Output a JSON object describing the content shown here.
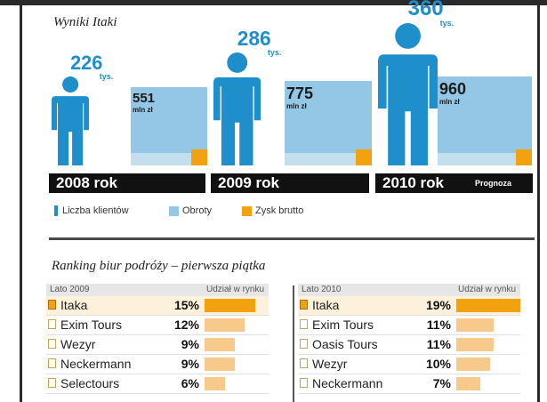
{
  "title": "Wyniki Itaki",
  "chart_data": {
    "type": "bar",
    "title": "Wyniki Itaki",
    "categories": [
      "2008 rok",
      "2009 rok",
      "2010 rok"
    ],
    "forecast_label": "Prognoza",
    "series": [
      {
        "name": "Liczba klientów",
        "values": [
          226,
          286,
          360
        ],
        "unit": "tys.",
        "color": "#1f8fcc"
      },
      {
        "name": "Obroty",
        "values": [
          551,
          775,
          960
        ],
        "unit": "mln zł",
        "color": "#93c7e5"
      },
      {
        "name": "Zysk brutto",
        "values": [
          null,
          null,
          null
        ],
        "color": "#f2a20e"
      }
    ]
  },
  "legend": [
    {
      "label": "Liczba klientów",
      "color": "#1f8fcc",
      "icon": "person-icon"
    },
    {
      "label": "Obroty",
      "color": "#93c7e5",
      "icon": "square-icon"
    },
    {
      "label": "Zysk brutto",
      "color": "#f2a20e",
      "icon": "square-icon"
    }
  ],
  "ranking": {
    "title": "Ranking biur podróży – pierwsza piątka",
    "share_header": "Udział w rynku",
    "panels": [
      {
        "period": "Lato 2009",
        "rows": [
          {
            "name": "Itaka",
            "share": "15%",
            "value": 15
          },
          {
            "name": "Exim Tours",
            "share": "12%",
            "value": 12
          },
          {
            "name": "Wezyr",
            "share": "9%",
            "value": 9
          },
          {
            "name": "Neckermann",
            "share": "9%",
            "value": 9
          },
          {
            "name": "Selectours",
            "share": "6%",
            "value": 6
          }
        ]
      },
      {
        "period": "Lato 2010",
        "rows": [
          {
            "name": "Itaka",
            "share": "19%",
            "value": 19
          },
          {
            "name": "Exim Tours",
            "share": "11%",
            "value": 11
          },
          {
            "name": "Oasis Tours",
            "share": "11%",
            "value": 11
          },
          {
            "name": "Wezyr",
            "share": "10%",
            "value": 10
          },
          {
            "name": "Neckermann",
            "share": "7%",
            "value": 7
          }
        ]
      }
    ]
  }
}
